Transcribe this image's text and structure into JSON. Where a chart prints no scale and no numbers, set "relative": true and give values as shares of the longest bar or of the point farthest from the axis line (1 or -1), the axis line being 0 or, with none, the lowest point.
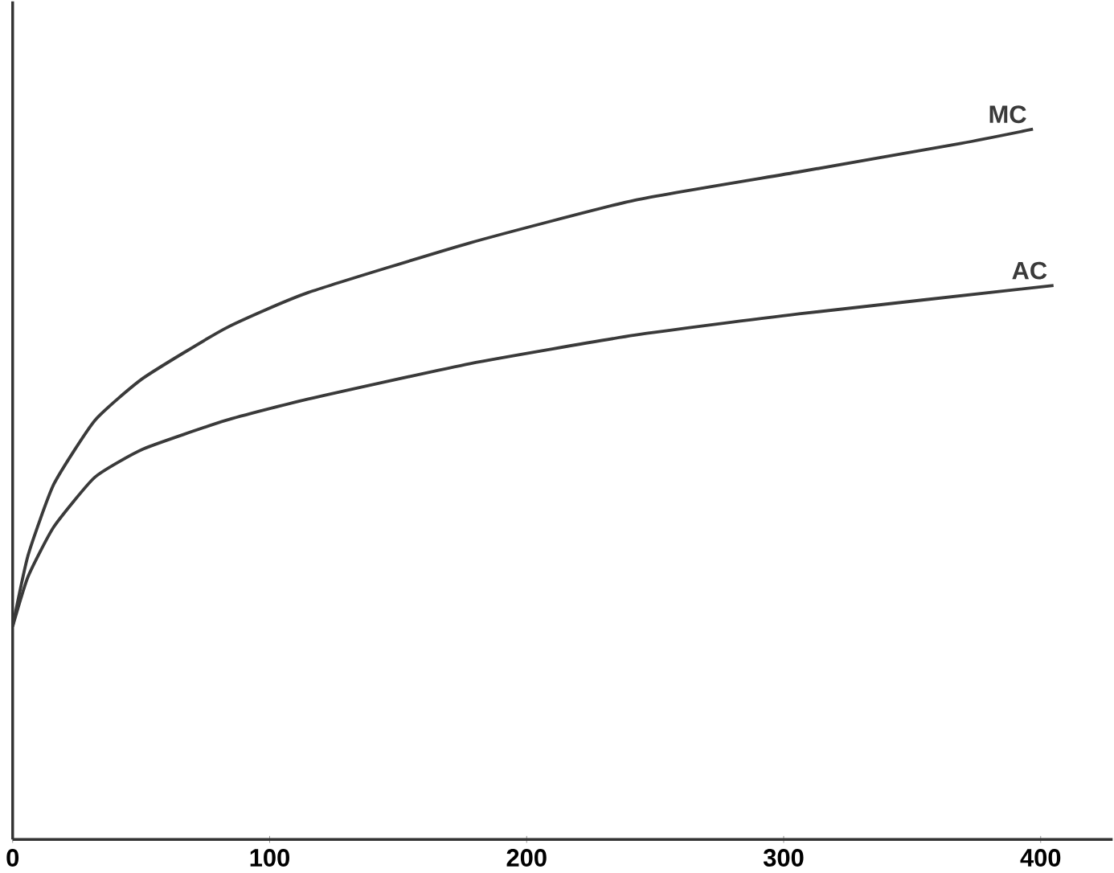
{
  "chart_data": {
    "type": "line",
    "relative": true,
    "xlim": [
      0,
      428
    ],
    "xticks": [
      0,
      100,
      200,
      300,
      400
    ],
    "tick_labels": "x",
    "legend": false,
    "grid": false,
    "marker": "none",
    "line_style": "solid",
    "series": [
      {
        "name": "MC",
        "color": "#3a3a3a",
        "x": [
          0,
          6,
          16,
          32,
          51,
          83,
          115,
          178,
          242,
          306,
          369,
          397
        ],
        "values": [
          0.3,
          0.4,
          0.5,
          0.59,
          0.65,
          0.72,
          0.77,
          0.84,
          0.9,
          0.94,
          0.98,
          1.0
        ]
      },
      {
        "name": "AC",
        "color": "#3a3a3a",
        "x": [
          0,
          6,
          16,
          32,
          51,
          83,
          115,
          178,
          242,
          306,
          405
        ],
        "values": [
          0.3,
          0.37,
          0.44,
          0.51,
          0.55,
          0.59,
          0.62,
          0.67,
          0.71,
          0.74,
          0.78
        ]
      }
    ]
  }
}
